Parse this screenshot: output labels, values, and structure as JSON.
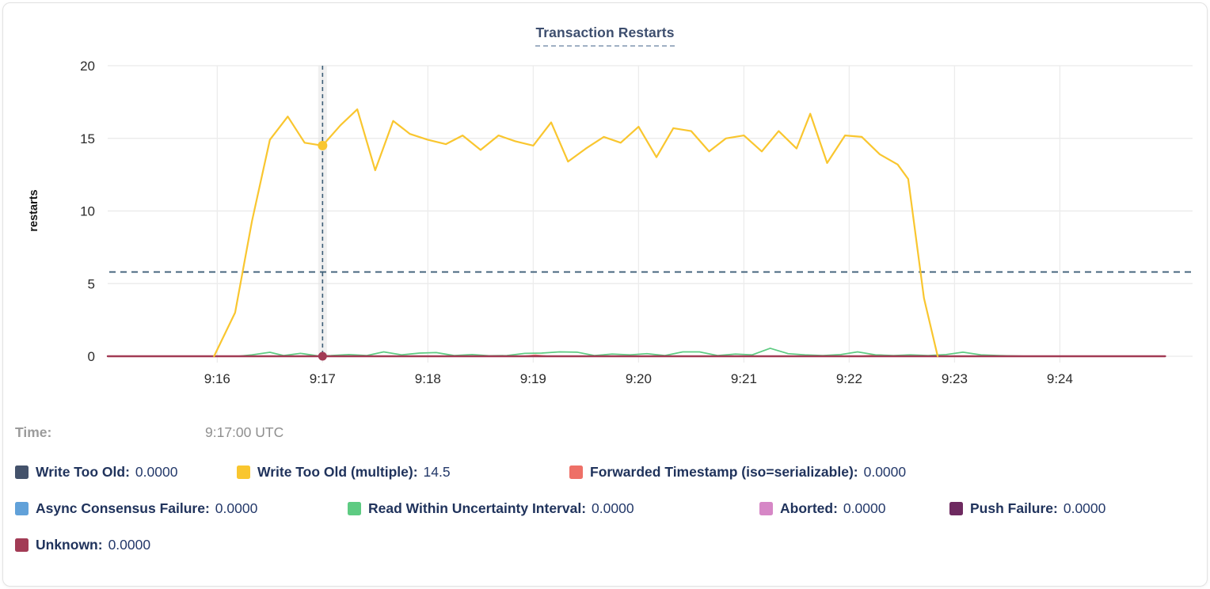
{
  "card": {
    "title": "Transaction Restarts"
  },
  "hover": {
    "time_label": "Time:",
    "time_value": "9:17:00 UTC"
  },
  "legend": {
    "rows": [
      [
        {
          "label": "Write Too Old:",
          "value": "0.0000",
          "color": "#44526b"
        },
        {
          "label": "Write Too Old (multiple):",
          "value": "14.5",
          "color": "#f9c62f"
        },
        {
          "label": "Forwarded Timestamp (iso=serializable):",
          "value": "0.0000",
          "color": "#ee7067"
        }
      ],
      [
        {
          "label": "Async Consensus Failure:",
          "value": "0.0000",
          "color": "#61a1d9"
        },
        {
          "label": "Read Within Uncertainty Interval:",
          "value": "0.0000",
          "color": "#5ecb82"
        },
        {
          "label": "Aborted:",
          "value": "0.0000",
          "color": "#d687c6"
        },
        {
          "label": "Push Failure:",
          "value": "0.0000",
          "color": "#6e2a60"
        }
      ],
      [
        {
          "label": "Unknown:",
          "value": "0.0000",
          "color": "#a23b55"
        }
      ]
    ]
  },
  "chart_data": {
    "type": "line",
    "title": "Transaction Restarts",
    "xlabel": "",
    "ylabel": "restarts",
    "ylim": [
      0,
      20
    ],
    "y_ticks": [
      0,
      5,
      10,
      15,
      20
    ],
    "x_tick_labels": [
      "9:16",
      "9:17",
      "9:18",
      "9:19",
      "9:20",
      "9:21",
      "9:22",
      "9:23",
      "9:24"
    ],
    "x_tick_minutes": [
      16,
      17,
      18,
      19,
      20,
      21,
      22,
      23,
      24
    ],
    "x_domain_minutes": [
      14.96,
      25.26
    ],
    "grid": true,
    "legend_position": "bottom",
    "reference_line_y": 5.8,
    "cursor": {
      "x_minute": 17,
      "time": "9:17:00 UTC",
      "points": [
        {
          "series": "Write Too Old (multiple)",
          "value": 14.5
        },
        {
          "series": "Unknown",
          "value": 0
        }
      ]
    },
    "series": [
      {
        "name": "Write Too Old",
        "color": "#44526b",
        "points": [
          [
            14.96,
            0
          ],
          [
            25.0,
            0
          ]
        ]
      },
      {
        "name": "Async Consensus Failure",
        "color": "#61a1d9",
        "points": [
          [
            14.96,
            0
          ],
          [
            25.0,
            0
          ]
        ]
      },
      {
        "name": "Aborted",
        "color": "#d687c6",
        "points": [
          [
            14.96,
            0
          ],
          [
            25.0,
            0
          ]
        ]
      },
      {
        "name": "Push Failure",
        "color": "#6e2a60",
        "points": [
          [
            14.96,
            0
          ],
          [
            25.0,
            0
          ]
        ]
      },
      {
        "name": "Forwarded Timestamp (iso=serializable)",
        "color": "#ee7067",
        "points": [
          [
            14.96,
            0
          ],
          [
            18.9,
            0
          ],
          [
            19.02,
            0.08
          ],
          [
            19.15,
            0
          ],
          [
            22.1,
            0
          ],
          [
            22.28,
            0.1
          ],
          [
            22.45,
            0
          ],
          [
            25.0,
            0
          ]
        ]
      },
      {
        "name": "Read Within Uncertainty Interval",
        "color": "#5ecb82",
        "points": [
          [
            16.2,
            0
          ],
          [
            16.33,
            0.1
          ],
          [
            16.5,
            0.27
          ],
          [
            16.63,
            0.05
          ],
          [
            16.79,
            0.2
          ],
          [
            16.96,
            0.02
          ],
          [
            17.08,
            0.05
          ],
          [
            17.25,
            0.12
          ],
          [
            17.42,
            0.05
          ],
          [
            17.58,
            0.3
          ],
          [
            17.75,
            0.1
          ],
          [
            17.92,
            0.22
          ],
          [
            18.08,
            0.25
          ],
          [
            18.25,
            0.05
          ],
          [
            18.42,
            0.12
          ],
          [
            18.58,
            0.03
          ],
          [
            18.75,
            0.05
          ],
          [
            18.92,
            0.2
          ],
          [
            19.08,
            0.22
          ],
          [
            19.25,
            0.3
          ],
          [
            19.42,
            0.28
          ],
          [
            19.58,
            0.05
          ],
          [
            19.75,
            0.15
          ],
          [
            19.92,
            0.1
          ],
          [
            20.08,
            0.18
          ],
          [
            20.25,
            0.05
          ],
          [
            20.42,
            0.3
          ],
          [
            20.58,
            0.3
          ],
          [
            20.75,
            0.05
          ],
          [
            20.92,
            0.15
          ],
          [
            21.08,
            0.1
          ],
          [
            21.25,
            0.55
          ],
          [
            21.42,
            0.18
          ],
          [
            21.58,
            0.1
          ],
          [
            21.75,
            0.05
          ],
          [
            21.92,
            0.12
          ],
          [
            22.08,
            0.3
          ],
          [
            22.25,
            0.1
          ],
          [
            22.42,
            0.05
          ],
          [
            22.58,
            0.1
          ],
          [
            22.75,
            0.05
          ],
          [
            22.92,
            0.12
          ],
          [
            23.08,
            0.28
          ],
          [
            23.25,
            0.1
          ],
          [
            23.42,
            0.05
          ],
          [
            23.7,
            0
          ]
        ]
      },
      {
        "name": "Unknown",
        "color": "#a23b55",
        "points": [
          [
            14.96,
            0
          ],
          [
            25.0,
            0
          ]
        ]
      },
      {
        "name": "Write Too Old (multiple)",
        "color": "#f9c62f",
        "points": [
          [
            15.97,
            0
          ],
          [
            16.17,
            3.0
          ],
          [
            16.33,
            9.3
          ],
          [
            16.5,
            14.9
          ],
          [
            16.67,
            16.5
          ],
          [
            16.83,
            14.7
          ],
          [
            17.0,
            14.5
          ],
          [
            17.17,
            15.9
          ],
          [
            17.33,
            17.0
          ],
          [
            17.5,
            12.8
          ],
          [
            17.67,
            16.2
          ],
          [
            17.83,
            15.3
          ],
          [
            18.0,
            14.9
          ],
          [
            18.17,
            14.6
          ],
          [
            18.33,
            15.2
          ],
          [
            18.5,
            14.2
          ],
          [
            18.67,
            15.2
          ],
          [
            18.83,
            14.8
          ],
          [
            19.0,
            14.5
          ],
          [
            19.17,
            16.1
          ],
          [
            19.33,
            13.4
          ],
          [
            19.5,
            14.3
          ],
          [
            19.67,
            15.1
          ],
          [
            19.83,
            14.7
          ],
          [
            20.0,
            15.8
          ],
          [
            20.17,
            13.7
          ],
          [
            20.33,
            15.7
          ],
          [
            20.5,
            15.5
          ],
          [
            20.67,
            14.1
          ],
          [
            20.83,
            15.0
          ],
          [
            21.0,
            15.2
          ],
          [
            21.17,
            14.1
          ],
          [
            21.33,
            15.5
          ],
          [
            21.5,
            14.3
          ],
          [
            21.63,
            16.7
          ],
          [
            21.79,
            13.3
          ],
          [
            21.96,
            15.2
          ],
          [
            22.12,
            15.1
          ],
          [
            22.29,
            13.9
          ],
          [
            22.46,
            13.2
          ],
          [
            22.56,
            12.2
          ],
          [
            22.71,
            4.0
          ],
          [
            22.84,
            0
          ]
        ]
      }
    ]
  }
}
